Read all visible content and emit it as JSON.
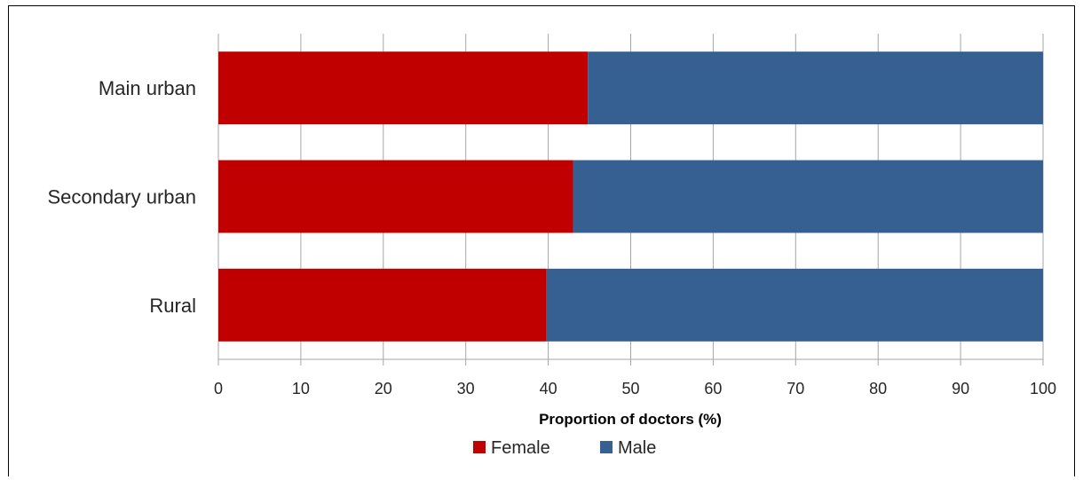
{
  "chart_data": {
    "type": "bar",
    "orientation": "horizontal",
    "stacked": true,
    "categories": [
      "Main urban",
      "Secondary urban",
      "Rural"
    ],
    "series": [
      {
        "name": "Female",
        "color": "#c00000",
        "values": [
          44.8,
          43.0,
          39.8
        ]
      },
      {
        "name": "Male",
        "color": "#376092",
        "values": [
          55.2,
          57.0,
          60.2
        ]
      }
    ],
    "x_ticks": [
      "0",
      "10",
      "20",
      "30",
      "40",
      "50",
      "60",
      "70",
      "80",
      "90",
      "100"
    ],
    "xlim": [
      0,
      100
    ],
    "xlabel": "Proportion of doctors (%)",
    "grid": true,
    "legend_position": "bottom"
  }
}
